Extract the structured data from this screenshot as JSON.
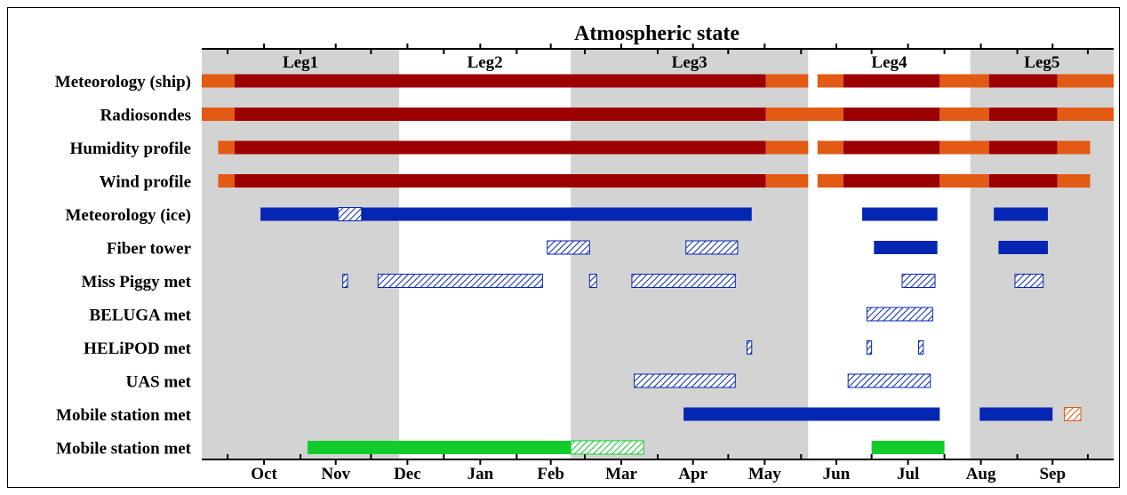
{
  "chart_data": {
    "type": "timeline",
    "title": "Atmospheric state",
    "months": [
      "Oct",
      "Nov",
      "Dec",
      "Jan",
      "Feb",
      "Mar",
      "Apr",
      "May",
      "Jun",
      "Jul",
      "Aug",
      "Sep"
    ],
    "legs": [
      {
        "name": "Leg1",
        "start": "2019-09-20",
        "end": "2019-12-13",
        "shaded": true
      },
      {
        "name": "Leg2",
        "start": "2019-12-13",
        "end": "2020-02-24",
        "shaded": false
      },
      {
        "name": "Leg3",
        "start": "2020-02-24",
        "end": "2020-06-04",
        "shaded": true
      },
      {
        "name": "Leg4",
        "start": "2020-06-04",
        "end": "2020-08-12",
        "shaded": false
      },
      {
        "name": "Leg5",
        "start": "2020-08-12",
        "end": "2020-10-12",
        "shaded": true
      }
    ],
    "rows": [
      {
        "label": "Meteorology (ship)",
        "segments": [
          {
            "start": "2019-09-20",
            "end": "2019-10-04",
            "style": "orange"
          },
          {
            "start": "2019-10-04",
            "end": "2020-05-17",
            "style": "darkred"
          },
          {
            "start": "2020-05-17",
            "end": "2020-06-04",
            "style": "orange"
          },
          {
            "start": "2020-06-08",
            "end": "2020-06-19",
            "style": "orange"
          },
          {
            "start": "2020-06-19",
            "end": "2020-07-30",
            "style": "darkred"
          },
          {
            "start": "2020-07-30",
            "end": "2020-08-20",
            "style": "orange"
          },
          {
            "start": "2020-08-20",
            "end": "2020-09-18",
            "style": "darkred"
          },
          {
            "start": "2020-09-18",
            "end": "2020-10-12",
            "style": "orange"
          }
        ]
      },
      {
        "label": "Radiosondes",
        "segments": [
          {
            "start": "2019-09-20",
            "end": "2019-10-04",
            "style": "orange"
          },
          {
            "start": "2019-10-04",
            "end": "2020-05-17",
            "style": "darkred"
          },
          {
            "start": "2020-05-17",
            "end": "2020-06-19",
            "style": "orange"
          },
          {
            "start": "2020-06-19",
            "end": "2020-07-30",
            "style": "darkred"
          },
          {
            "start": "2020-07-30",
            "end": "2020-08-20",
            "style": "orange"
          },
          {
            "start": "2020-08-20",
            "end": "2020-09-18",
            "style": "darkred"
          },
          {
            "start": "2020-09-18",
            "end": "2020-10-12",
            "style": "orange"
          }
        ]
      },
      {
        "label": "Humidity profile",
        "segments": [
          {
            "start": "2019-09-27",
            "end": "2019-10-04",
            "style": "orange"
          },
          {
            "start": "2019-10-04",
            "end": "2020-05-17",
            "style": "darkred"
          },
          {
            "start": "2020-05-17",
            "end": "2020-06-04",
            "style": "orange"
          },
          {
            "start": "2020-06-08",
            "end": "2020-06-19",
            "style": "orange"
          },
          {
            "start": "2020-06-19",
            "end": "2020-07-30",
            "style": "darkred"
          },
          {
            "start": "2020-07-30",
            "end": "2020-08-20",
            "style": "orange"
          },
          {
            "start": "2020-08-20",
            "end": "2020-09-18",
            "style": "darkred"
          },
          {
            "start": "2020-09-18",
            "end": "2020-10-02",
            "style": "orange"
          }
        ]
      },
      {
        "label": "Wind profile",
        "segments": [
          {
            "start": "2019-09-27",
            "end": "2019-10-04",
            "style": "orange"
          },
          {
            "start": "2019-10-04",
            "end": "2020-05-17",
            "style": "darkred"
          },
          {
            "start": "2020-05-17",
            "end": "2020-06-04",
            "style": "orange"
          },
          {
            "start": "2020-06-08",
            "end": "2020-06-19",
            "style": "orange"
          },
          {
            "start": "2020-06-19",
            "end": "2020-07-30",
            "style": "darkred"
          },
          {
            "start": "2020-07-30",
            "end": "2020-08-20",
            "style": "orange"
          },
          {
            "start": "2020-08-20",
            "end": "2020-09-18",
            "style": "darkred"
          },
          {
            "start": "2020-09-18",
            "end": "2020-10-02",
            "style": "orange"
          }
        ]
      },
      {
        "label": "Meteorology (ice)",
        "segments": [
          {
            "start": "2019-10-15",
            "end": "2019-11-17",
            "style": "blue"
          },
          {
            "start": "2019-11-17",
            "end": "2019-11-27",
            "style": "blue-hatch"
          },
          {
            "start": "2019-11-27",
            "end": "2020-05-11",
            "style": "blue"
          },
          {
            "start": "2020-06-27",
            "end": "2020-07-29",
            "style": "blue"
          },
          {
            "start": "2020-08-22",
            "end": "2020-09-14",
            "style": "blue"
          }
        ]
      },
      {
        "label": "Fiber tower",
        "segments": [
          {
            "start": "2020-02-14",
            "end": "2020-03-03",
            "style": "blue-hatch"
          },
          {
            "start": "2020-04-13",
            "end": "2020-05-05",
            "style": "blue-hatch"
          },
          {
            "start": "2020-07-02",
            "end": "2020-07-29",
            "style": "blue"
          },
          {
            "start": "2020-08-24",
            "end": "2020-09-14",
            "style": "blue"
          }
        ]
      },
      {
        "label": "Miss Piggy met",
        "segments": [
          {
            "start": "2019-11-19",
            "end": "2019-11-21",
            "style": "blue-hatch"
          },
          {
            "start": "2019-12-04",
            "end": "2020-02-12",
            "style": "blue-hatch"
          },
          {
            "start": "2020-03-03",
            "end": "2020-03-06",
            "style": "blue-hatch"
          },
          {
            "start": "2020-03-21",
            "end": "2020-05-04",
            "style": "blue-hatch"
          },
          {
            "start": "2020-07-14",
            "end": "2020-07-28",
            "style": "blue-hatch"
          },
          {
            "start": "2020-08-31",
            "end": "2020-09-12",
            "style": "blue-hatch"
          }
        ]
      },
      {
        "label": "BELUGA met",
        "segments": [
          {
            "start": "2020-06-29",
            "end": "2020-07-27",
            "style": "blue-hatch"
          }
        ]
      },
      {
        "label": "HELiPOD met",
        "segments": [
          {
            "start": "2020-05-09",
            "end": "2020-05-11",
            "style": "blue-hatch"
          },
          {
            "start": "2020-06-29",
            "end": "2020-07-01",
            "style": "blue-hatch"
          },
          {
            "start": "2020-07-21",
            "end": "2020-07-23",
            "style": "blue-hatch"
          }
        ]
      },
      {
        "label": "UAS met",
        "segments": [
          {
            "start": "2020-03-22",
            "end": "2020-05-04",
            "style": "blue-hatch"
          },
          {
            "start": "2020-06-21",
            "end": "2020-07-26",
            "style": "blue-hatch"
          }
        ]
      },
      {
        "label": "Mobile station met",
        "segments": [
          {
            "start": "2020-04-12",
            "end": "2020-07-30",
            "style": "blue"
          },
          {
            "start": "2020-08-16",
            "end": "2020-09-16",
            "style": "blue"
          },
          {
            "start": "2020-09-21",
            "end": "2020-09-28",
            "style": "orange-hatch"
          }
        ]
      },
      {
        "label": "Mobile station met",
        "segments": [
          {
            "start": "2019-11-04",
            "end": "2020-02-24",
            "style": "green"
          },
          {
            "start": "2020-02-24",
            "end": "2020-03-26",
            "style": "green-hatch"
          },
          {
            "start": "2020-07-01",
            "end": "2020-08-01",
            "style": "green"
          }
        ]
      }
    ],
    "colors": {
      "orange": "#e35a14",
      "darkred": "#9c0000",
      "blue": "#0526b3",
      "green": "#11cc2b",
      "shade": "#d3d3d3"
    }
  }
}
